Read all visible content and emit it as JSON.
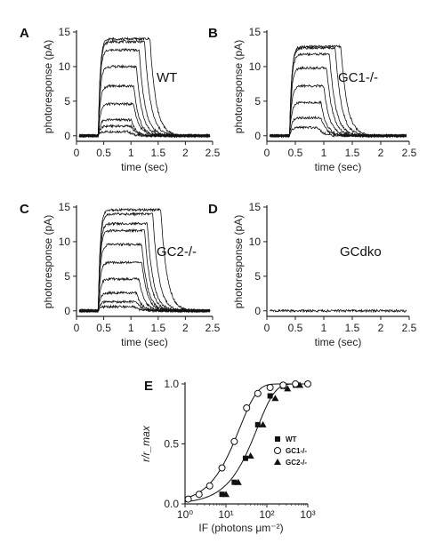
{
  "chart_data": [
    {
      "type": "line",
      "panel": "A",
      "annotation": "WT",
      "xlabel": "time (sec)",
      "ylabel": "photoresponse (pA)",
      "xlim": [
        0,
        2.5
      ],
      "ylim": [
        -0.8,
        15
      ],
      "xticks": [
        "0",
        "0.5",
        "1",
        "1.5",
        "2",
        "2.5"
      ],
      "yticks": [
        "0",
        "5",
        "10",
        "15"
      ],
      "flash_onset_sec": 0.4,
      "series": [
        {
          "peak_pA": 0.6,
          "end_sec": 0.95
        },
        {
          "peak_pA": 1.4,
          "end_sec": 1.0
        },
        {
          "peak_pA": 2.3,
          "end_sec": 1.0
        },
        {
          "peak_pA": 4.6,
          "end_sec": 1.05
        },
        {
          "peak_pA": 7.2,
          "end_sec": 1.05
        },
        {
          "peak_pA": 10.0,
          "end_sec": 1.1
        },
        {
          "peak_pA": 12.4,
          "end_sec": 1.15
        },
        {
          "peak_pA": 13.6,
          "end_sec": 1.25
        },
        {
          "peak_pA": 14.0,
          "end_sec": 1.35
        }
      ]
    },
    {
      "type": "line",
      "panel": "B",
      "annotation": "GC1-/-",
      "xlabel": "time (sec)",
      "ylabel": "photoresponse (pA)",
      "xlim": [
        0,
        2.5
      ],
      "ylim": [
        -0.8,
        15
      ],
      "xticks": [
        "0",
        "0.5",
        "1",
        "1.5",
        "2",
        "2.5"
      ],
      "yticks": [
        "0",
        "5",
        "10",
        "15"
      ],
      "flash_onset_sec": 0.4,
      "series": [
        {
          "peak_pA": 1.2,
          "end_sec": 0.9
        },
        {
          "peak_pA": 2.6,
          "end_sec": 0.95
        },
        {
          "peak_pA": 4.8,
          "end_sec": 0.95
        },
        {
          "peak_pA": 7.2,
          "end_sec": 1.0
        },
        {
          "peak_pA": 9.8,
          "end_sec": 1.05
        },
        {
          "peak_pA": 11.8,
          "end_sec": 1.1
        },
        {
          "peak_pA": 12.7,
          "end_sec": 1.2
        },
        {
          "peak_pA": 12.9,
          "end_sec": 1.3
        }
      ]
    },
    {
      "type": "line",
      "panel": "C",
      "annotation": "GC2-/-",
      "xlabel": "time (sec)",
      "ylabel": "photoresponse (pA)",
      "xlim": [
        0,
        2.5
      ],
      "ylim": [
        -0.8,
        15
      ],
      "xticks": [
        "0",
        "0.5",
        "1",
        "1.5",
        "2",
        "2.5"
      ],
      "yticks": [
        "0",
        "5",
        "10",
        "15"
      ],
      "flash_onset_sec": 0.4,
      "series": [
        {
          "peak_pA": 0.6,
          "end_sec": 1.05
        },
        {
          "peak_pA": 1.3,
          "end_sec": 1.1
        },
        {
          "peak_pA": 2.6,
          "end_sec": 1.1
        },
        {
          "peak_pA": 4.6,
          "end_sec": 1.15
        },
        {
          "peak_pA": 7.0,
          "end_sec": 1.2
        },
        {
          "peak_pA": 9.6,
          "end_sec": 1.2
        },
        {
          "peak_pA": 11.6,
          "end_sec": 1.25
        },
        {
          "peak_pA": 12.6,
          "end_sec": 1.3
        },
        {
          "peak_pA": 14.0,
          "end_sec": 1.4
        },
        {
          "peak_pA": 14.6,
          "end_sec": 1.55
        }
      ]
    },
    {
      "type": "line",
      "panel": "D",
      "annotation": "GCdko",
      "xlabel": "time (sec)",
      "ylabel": "photoresponse (pA)",
      "xlim": [
        0,
        2.5
      ],
      "ylim": [
        -0.8,
        15
      ],
      "xticks": [
        "0",
        "0.5",
        "1",
        "1.5",
        "2",
        "2.5"
      ],
      "yticks": [
        "0",
        "5",
        "10",
        "15"
      ],
      "flash_onset_sec": 0.4,
      "series": [
        {
          "peak_pA": 0.0,
          "end_sec": 0.4
        }
      ]
    },
    {
      "type": "scatter",
      "panel": "E",
      "xlabel": "IF (photons μm⁻²)",
      "ylabel": "r/r_max",
      "xscale": "log",
      "xlim": [
        1,
        1000
      ],
      "ylim": [
        0,
        1
      ],
      "xticks": [
        "10⁰",
        "10¹",
        "10²",
        "10³"
      ],
      "yticks": [
        "0.0",
        "0.5",
        "1.0"
      ],
      "legend_position": "right",
      "series": [
        {
          "name": "WT",
          "marker": "filled-square",
          "x": [
            8,
            16,
            30,
            60,
            120,
            250,
            500,
            1000
          ],
          "y": [
            0.08,
            0.18,
            0.38,
            0.66,
            0.9,
            0.98,
            0.99,
            1.0
          ]
        },
        {
          "name": "GC1-/-",
          "marker": "open-circle",
          "x": [
            1.2,
            2.2,
            4,
            8,
            16,
            32,
            60,
            120,
            250,
            500,
            1000
          ],
          "y": [
            0.04,
            0.08,
            0.15,
            0.3,
            0.52,
            0.8,
            0.92,
            0.97,
            0.99,
            1.0,
            1.0
          ]
        },
        {
          "name": "GC2-/-",
          "marker": "filled-triangle",
          "x": [
            10,
            20,
            40,
            80,
            160,
            320,
            640
          ],
          "y": [
            0.08,
            0.18,
            0.4,
            0.66,
            0.88,
            0.96,
            0.99
          ]
        }
      ]
    }
  ]
}
